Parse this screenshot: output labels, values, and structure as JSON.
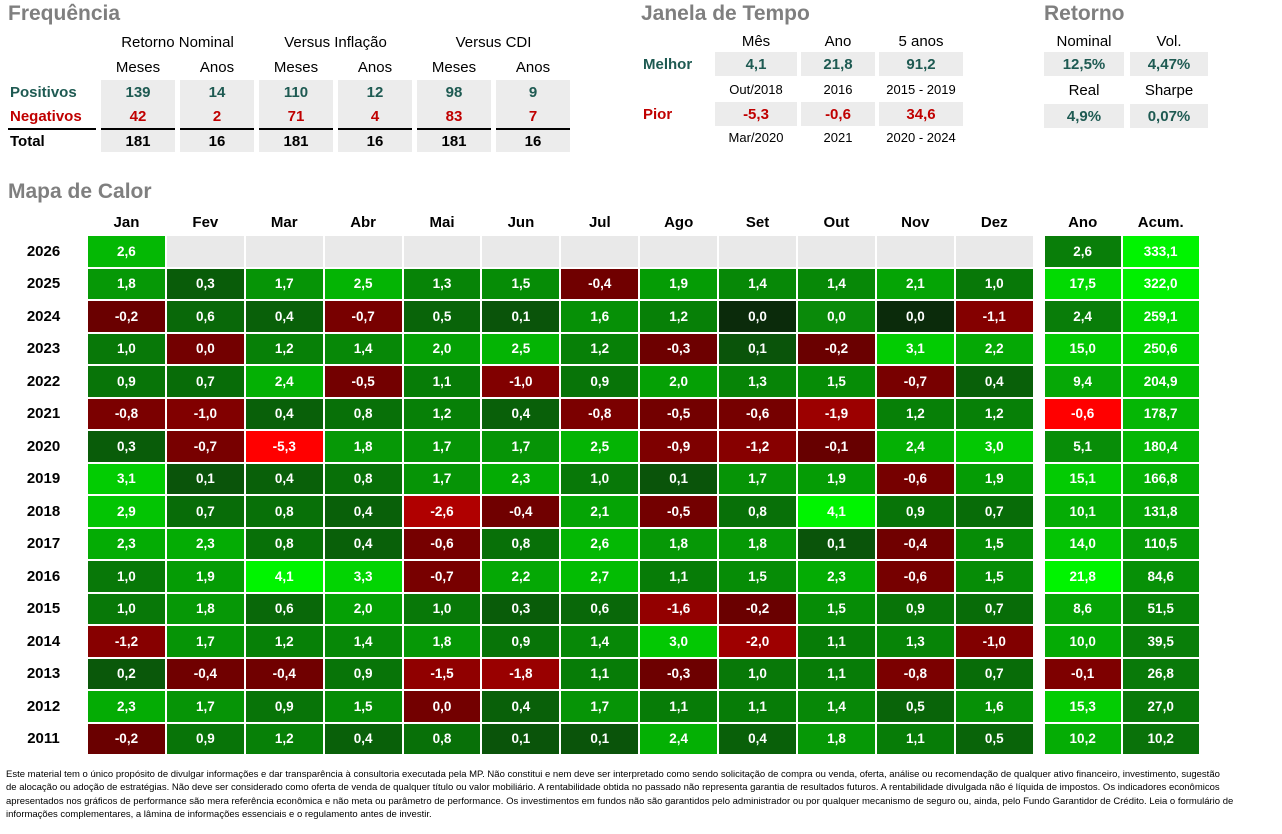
{
  "colors": {
    "positive_text": "#1E5A52",
    "negative_text": "#C00000",
    "title_gray": "#7F7F7F",
    "table_cell_bg": "#ECECEC",
    "heatmap_empty_cell": "#E9E9E9",
    "heatmap_bright_green": "#00EE00",
    "heatmap_dark_green": "#005000",
    "heatmap_dark_red": "#6E0000",
    "heatmap_pure_red": "#FF0000"
  },
  "chart_data": [
    {
      "type": "table",
      "title": "Frequência",
      "group_headers": [
        "Retorno Nominal",
        "Versus Inflação",
        "Versus CDI"
      ],
      "sub_headers": [
        "Meses",
        "Anos",
        "Meses",
        "Anos",
        "Meses",
        "Anos"
      ],
      "rows": [
        {
          "label": "Positivos",
          "tone": "positive",
          "values": [
            "139",
            "14",
            "110",
            "12",
            "98",
            "9"
          ]
        },
        {
          "label": "Negativos",
          "tone": "negative",
          "values": [
            "42",
            "2",
            "71",
            "4",
            "83",
            "7"
          ]
        },
        {
          "label": "Total",
          "tone": "total",
          "values": [
            "181",
            "16",
            "181",
            "16",
            "181",
            "16"
          ]
        }
      ]
    },
    {
      "type": "table",
      "title": "Janela de Tempo",
      "col_headers": [
        "Mês",
        "Ano",
        "5 anos"
      ],
      "rows": [
        {
          "label": "Melhor",
          "tone": "positive",
          "values": [
            "4,1",
            "21,8",
            "91,2"
          ],
          "periods": [
            "Out/2018",
            "2016",
            "2015 - 2019"
          ]
        },
        {
          "label": "Pior",
          "tone": "negative",
          "values": [
            "-5,3",
            "-0,6",
            "34,6"
          ],
          "periods": [
            "Mar/2020",
            "2021",
            "2020 - 2024"
          ]
        }
      ]
    },
    {
      "type": "table",
      "title": "Retorno",
      "cells": [
        {
          "label": "Nominal",
          "value": "12,5%"
        },
        {
          "label": "Vol.",
          "value": "4,47%"
        },
        {
          "label": "Real",
          "value": "4,9%"
        },
        {
          "label": "Sharpe",
          "value": "0,07%"
        }
      ]
    },
    {
      "type": "heatmap",
      "title": "Mapa de Calor",
      "months": [
        "Jan",
        "Fev",
        "Mar",
        "Abr",
        "Mai",
        "Jun",
        "Jul",
        "Ago",
        "Set",
        "Out",
        "Nov",
        "Dez"
      ],
      "ano_header": "Ano",
      "acum_header": "Acum.",
      "rows": [
        {
          "year": "2026",
          "values": [
            "2,6",
            "",
            "",
            "",
            "",
            "",
            "",
            "",
            "",
            "",
            "",
            ""
          ],
          "ano": "2,6",
          "acum": "333,1"
        },
        {
          "year": "2025",
          "values": [
            "1,8",
            "0,3",
            "1,7",
            "2,5",
            "1,3",
            "1,5",
            "-0,4",
            "1,9",
            "1,4",
            "1,4",
            "2,1",
            "1,0"
          ],
          "ano": "17,5",
          "acum": "322,0"
        },
        {
          "year": "2024",
          "values": [
            "-0,2",
            "0,6",
            "0,4",
            "-0,7",
            "0,5",
            "0,1",
            "1,6",
            "1,2",
            "0,0",
            "0,0",
            "0,0",
            "-1,1"
          ],
          "ano": "2,4",
          "acum": "259,1"
        },
        {
          "year": "2023",
          "values": [
            "1,0",
            "0,0",
            "1,2",
            "1,4",
            "2,0",
            "2,5",
            "1,2",
            "-0,3",
            "0,1",
            "-0,2",
            "3,1",
            "2,2"
          ],
          "ano": "15,0",
          "acum": "250,6"
        },
        {
          "year": "2022",
          "values": [
            "0,9",
            "0,7",
            "2,4",
            "-0,5",
            "1,1",
            "-1,0",
            "0,9",
            "2,0",
            "1,3",
            "1,5",
            "-0,7",
            "0,4"
          ],
          "ano": "9,4",
          "acum": "204,9"
        },
        {
          "year": "2021",
          "values": [
            "-0,8",
            "-1,0",
            "0,4",
            "0,8",
            "1,2",
            "0,4",
            "-0,8",
            "-0,5",
            "-0,6",
            "-1,9",
            "1,2",
            "1,2"
          ],
          "ano": "-0,6",
          "acum": "178,7"
        },
        {
          "year": "2020",
          "values": [
            "0,3",
            "-0,7",
            "-5,3",
            "1,8",
            "1,7",
            "1,7",
            "2,5",
            "-0,9",
            "-1,2",
            "-0,1",
            "2,4",
            "3,0"
          ],
          "ano": "5,1",
          "acum": "180,4"
        },
        {
          "year": "2019",
          "values": [
            "3,1",
            "0,1",
            "0,4",
            "0,8",
            "1,7",
            "2,3",
            "1,0",
            "0,1",
            "1,7",
            "1,9",
            "-0,6",
            "1,9"
          ],
          "ano": "15,1",
          "acum": "166,8"
        },
        {
          "year": "2018",
          "values": [
            "2,9",
            "0,7",
            "0,8",
            "0,4",
            "-2,6",
            "-0,4",
            "2,1",
            "-0,5",
            "0,8",
            "4,1",
            "0,9",
            "0,7"
          ],
          "ano": "10,1",
          "acum": "131,8"
        },
        {
          "year": "2017",
          "values": [
            "2,3",
            "2,3",
            "0,8",
            "0,4",
            "-0,6",
            "0,8",
            "2,6",
            "1,8",
            "1,8",
            "0,1",
            "-0,4",
            "1,5"
          ],
          "ano": "14,0",
          "acum": "110,5"
        },
        {
          "year": "2016",
          "values": [
            "1,0",
            "1,9",
            "4,1",
            "3,3",
            "-0,7",
            "2,2",
            "2,7",
            "1,1",
            "1,5",
            "2,3",
            "-0,6",
            "1,5"
          ],
          "ano": "21,8",
          "acum": "84,6"
        },
        {
          "year": "2015",
          "values": [
            "1,0",
            "1,8",
            "0,6",
            "2,0",
            "1,0",
            "0,3",
            "0,6",
            "-1,6",
            "-0,2",
            "1,5",
            "0,9",
            "0,7"
          ],
          "ano": "8,6",
          "acum": "51,5"
        },
        {
          "year": "2014",
          "values": [
            "-1,2",
            "1,7",
            "1,2",
            "1,4",
            "1,8",
            "0,9",
            "1,4",
            "3,0",
            "-2,0",
            "1,1",
            "1,3",
            "-1,0"
          ],
          "ano": "10,0",
          "acum": "39,5"
        },
        {
          "year": "2013",
          "values": [
            "0,2",
            "-0,4",
            "-0,4",
            "0,9",
            "-1,5",
            "-1,8",
            "1,1",
            "-0,3",
            "1,0",
            "1,1",
            "-0,8",
            "0,7"
          ],
          "ano": "-0,1",
          "acum": "26,8"
        },
        {
          "year": "2012",
          "values": [
            "2,3",
            "1,7",
            "0,9",
            "1,5",
            "0,0",
            "0,4",
            "1,7",
            "1,1",
            "1,1",
            "1,4",
            "0,5",
            "1,6"
          ],
          "ano": "15,3",
          "acum": "27,0"
        },
        {
          "year": "2011",
          "values": [
            "-0,2",
            "0,9",
            "1,2",
            "0,4",
            "0,8",
            "0,1",
            "0,1",
            "2,4",
            "0,4",
            "1,8",
            "1,1",
            "0,5"
          ],
          "ano": "10,2",
          "acum": "10,2"
        }
      ],
      "color_overrides": {
        "2023-1": "#730000",
        "2012-4": "#730000",
        "2024-8": "#0B2B0B",
        "2024-9": "#0A8A0A",
        "2024-10": "#0B2B0B"
      }
    }
  ],
  "disclaimer_lines": [
    "Este material tem o único propósito de divulgar informações e dar transparência à consultoria executada pela MP. Não constitui e nem deve ser interpretado como sendo solicitação de compra ou venda, oferta, análise ou recomendação de qualquer ativo financeiro, investimento, sugestão",
    "de alocação ou adoção de estratégias. Não deve ser considerado como oferta de venda de qualquer título ou valor mobiliário. A rentabilidade obtida no passado não representa garantia de resultados futuros. A rentabilidade divulgada não é líquida de impostos. Os indicadores econômicos",
    "apresentados nos gráficos de performance são mera referência econômica e não meta ou parâmetro de performance. Os investimentos em fundos não são garantidos pelo administrador ou por qualquer mecanismo de seguro ou, ainda, pelo Fundo Garantidor de Crédito. Leia o formulário de",
    "informações complementares, a lâmina de informações essenciais e o regulamento antes de investir."
  ]
}
